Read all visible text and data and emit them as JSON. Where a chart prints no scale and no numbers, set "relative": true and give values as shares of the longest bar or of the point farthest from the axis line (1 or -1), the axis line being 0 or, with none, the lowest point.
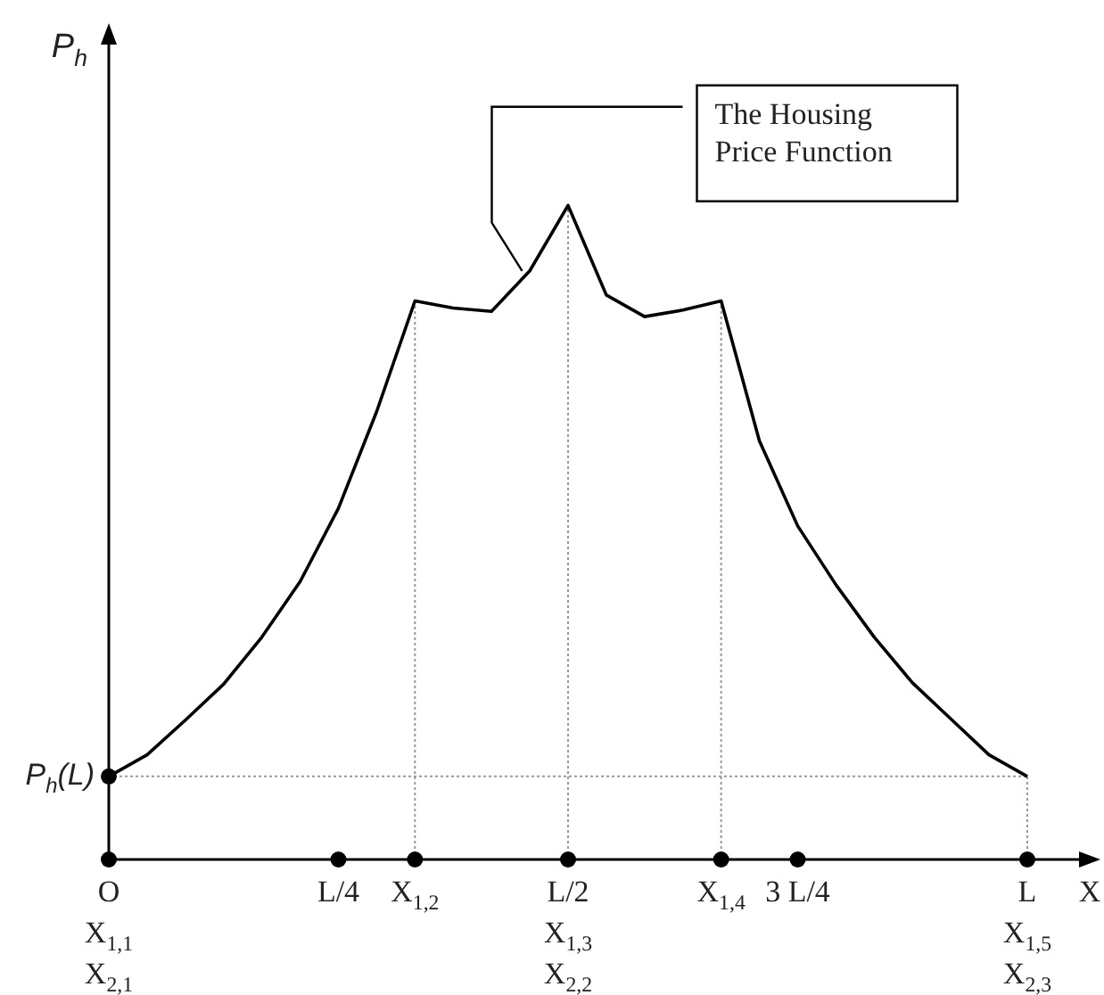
{
  "chart_data": {
    "type": "line",
    "relative": true,
    "xlabel": "X",
    "ylabel": "P$_{h}$",
    "categories": [
      "O\nX$_{1,1}$\nX$_{2,1}$",
      null,
      null,
      null,
      null,
      null,
      "L/4",
      null,
      "X$_{1,2}$",
      null,
      null,
      null,
      "L/2\nX$_{1,3}$\nX$_{2,2}$",
      null,
      null,
      null,
      "X$_{1,4}$",
      null,
      "3 L/4",
      null,
      null,
      null,
      null,
      null,
      "L\nX$_{1,5}$\nX$_{2,3}$"
    ],
    "series": [
      {
        "type": "line",
        "color": "#000000",
        "marker": "none",
        "line_style": "solid",
        "values": [
          0.127,
          0.16,
          0.213,
          0.268,
          0.34,
          0.425,
          0.537,
          0.685,
          0.854,
          0.843,
          0.838,
          0.9,
          1,
          0.863,
          0.83,
          0.84,
          0.854,
          0.64,
          0.51,
          0.42,
          0.34,
          0.27,
          0.215,
          0.16,
          0.127
        ]
      },
      {
        "type": "scatter",
        "color": "#000000",
        "marker": "circle",
        "x": [
          "O\nX$_{1,1}$\nX$_{2,1}$",
          "O\nX$_{1,1}$\nX$_{2,1}$",
          "L/4",
          "X$_{1,2}$",
          "L/2\nX$_{1,3}$\nX$_{2,2}$",
          "X$_{1,4}$",
          "3 L/4",
          "L\nX$_{1,5}$\nX$_{2,3}$"
        ],
        "values": [
          0,
          0.127,
          0,
          0,
          0,
          0,
          0,
          0
        ]
      }
    ],
    "ref_lines": [
      {
        "axis": "y",
        "value": 0.127,
        "label": "P$_{h}$(L)",
        "color": "#999999",
        "line_style": "dotted"
      },
      {
        "axis": "x",
        "value": "X$_{1,2}$",
        "color": "#999999",
        "line_style": "dotted"
      },
      {
        "axis": "x",
        "value": "L/2\nX$_{1,3}$\nX$_{2,2}$",
        "color": "#999999",
        "line_style": "dotted"
      },
      {
        "axis": "x",
        "value": "X$_{1,4}$",
        "color": "#999999",
        "line_style": "dotted"
      },
      {
        "axis": "x",
        "value": "L\nX$_{1,5}$\nX$_{2,3}$",
        "color": "#999999",
        "line_style": "dotted"
      }
    ],
    "annotations": [
      "The Housing Price Function"
    ],
    "legend": false
  }
}
